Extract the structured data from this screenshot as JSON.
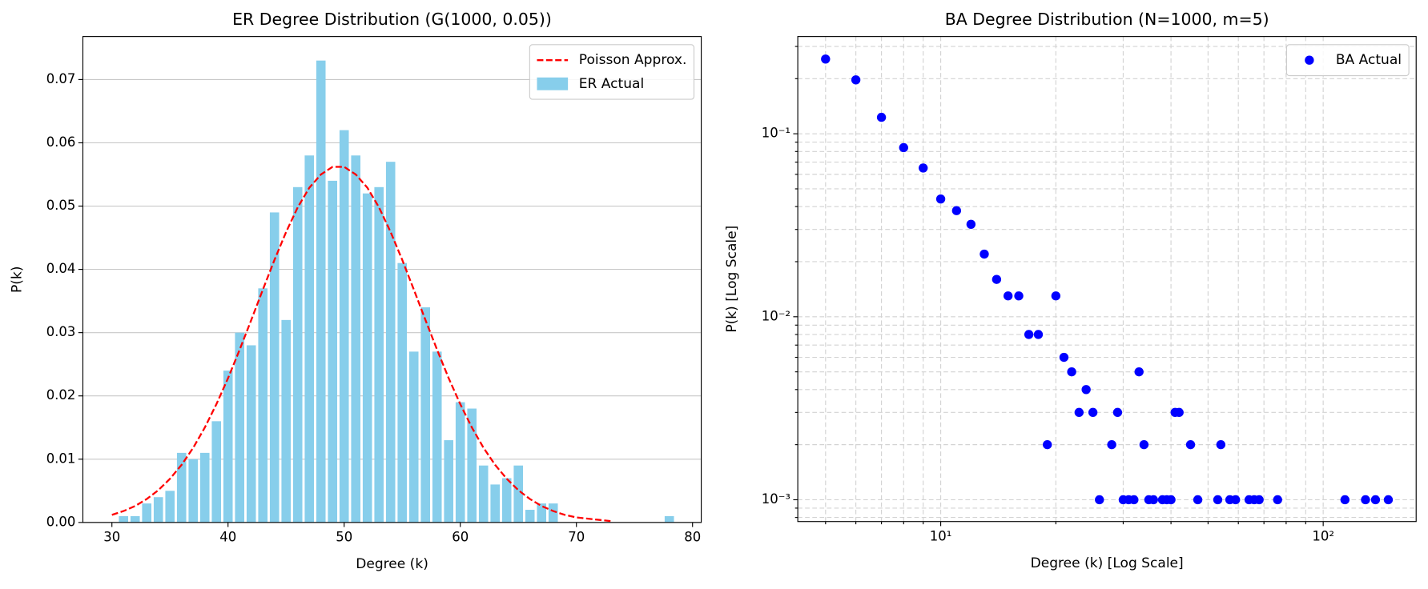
{
  "chart_data": [
    {
      "type": "bar",
      "title": "ER Degree Distribution (G(1000, 0.05))",
      "xlabel": "Degree (k)",
      "ylabel": "P(k)",
      "series": [
        {
          "name": "Poisson Approx.",
          "type": "line",
          "style": "dashed",
          "color": "#ff0000",
          "x": [
            30,
            31,
            32,
            33,
            34,
            35,
            36,
            37,
            38,
            39,
            40,
            41,
            42,
            43,
            44,
            45,
            46,
            47,
            48,
            49,
            50,
            51,
            52,
            53,
            54,
            55,
            56,
            57,
            58,
            59,
            60,
            61,
            62,
            63,
            64,
            65,
            66,
            67,
            68,
            69,
            70,
            71,
            72,
            73
          ],
          "values": [
            0.0012,
            0.0018,
            0.0026,
            0.0037,
            0.0051,
            0.0069,
            0.0091,
            0.0118,
            0.015,
            0.0187,
            0.0228,
            0.0273,
            0.032,
            0.0368,
            0.0415,
            0.0459,
            0.0498,
            0.0529,
            0.055,
            0.0562,
            0.0562,
            0.055,
            0.0529,
            0.0498,
            0.0459,
            0.0415,
            0.0368,
            0.032,
            0.0273,
            0.0228,
            0.0187,
            0.015,
            0.0118,
            0.0091,
            0.0069,
            0.0051,
            0.0037,
            0.0026,
            0.0018,
            0.0012,
            0.0008,
            0.0006,
            0.0004,
            0.0002
          ]
        },
        {
          "name": "ER Actual",
          "type": "bar",
          "color": "#87ceeb",
          "x": [
            31,
            32,
            33,
            34,
            35,
            36,
            37,
            38,
            39,
            40,
            41,
            42,
            43,
            44,
            45,
            46,
            47,
            48,
            49,
            50,
            51,
            52,
            53,
            54,
            55,
            56,
            57,
            58,
            59,
            60,
            61,
            62,
            63,
            64,
            65,
            66,
            67,
            68,
            78
          ],
          "values": [
            0.001,
            0.001,
            0.003,
            0.004,
            0.005,
            0.011,
            0.01,
            0.011,
            0.016,
            0.024,
            0.03,
            0.028,
            0.037,
            0.049,
            0.032,
            0.053,
            0.058,
            0.073,
            0.054,
            0.062,
            0.058,
            0.052,
            0.053,
            0.057,
            0.041,
            0.027,
            0.034,
            0.027,
            0.013,
            0.019,
            0.018,
            0.009,
            0.006,
            0.007,
            0.009,
            0.002,
            0.003,
            0.003,
            0.001
          ]
        }
      ],
      "xlim": [
        27.5,
        80.75
      ],
      "xticks": [
        30,
        40,
        50,
        60,
        70,
        80
      ],
      "ylim": [
        0,
        0.0768
      ],
      "yticks": [
        {
          "value": 0,
          "label": "0.00"
        },
        0.01,
        0.02,
        0.03,
        0.04,
        0.05,
        0.06,
        0.07
      ],
      "grid": "y",
      "legend": "upper right"
    },
    {
      "type": "scatter",
      "title": "BA Degree Distribution (N=1000, m=5)",
      "xlabel": "Degree (k) [Log Scale]",
      "ylabel": "P(k) [Log Scale]",
      "xscale": "log",
      "yscale": "log",
      "series": [
        {
          "name": "BA Actual",
          "type": "scatter",
          "color": "#0000ff",
          "x": [
            5,
            6,
            7,
            8,
            9,
            10,
            11,
            12,
            13,
            14,
            15,
            16,
            17,
            18,
            19,
            20,
            21,
            22,
            23,
            24,
            25,
            26,
            28,
            29,
            30,
            31,
            32,
            33,
            34,
            35,
            36,
            38,
            39,
            40,
            41,
            42,
            45,
            47,
            53,
            54,
            57,
            59,
            64,
            66,
            68,
            76,
            114,
            129,
            137,
            148
          ],
          "values": [
            0.256,
            0.197,
            0.123,
            0.084,
            0.065,
            0.044,
            0.038,
            0.032,
            0.022,
            0.016,
            0.013,
            0.013,
            0.008,
            0.008,
            0.002,
            0.013,
            0.006,
            0.005,
            0.003,
            0.004,
            0.003,
            0.001,
            0.002,
            0.003,
            0.001,
            0.001,
            0.001,
            0.005,
            0.002,
            0.001,
            0.001,
            0.001,
            0.001,
            0.001,
            0.003,
            0.003,
            0.002,
            0.001,
            0.001,
            0.002,
            0.001,
            0.001,
            0.001,
            0.001,
            0.001,
            0.001,
            0.001,
            0.001,
            0.001,
            0.001
          ]
        }
      ],
      "xlim": [
        4.23,
        175
      ],
      "xticks": [
        {
          "value": 10,
          "label": "10¹"
        },
        {
          "value": 100,
          "label": "10²"
        }
      ],
      "xminorticks": [
        5,
        6,
        7,
        8,
        9,
        20,
        30,
        40,
        50,
        60,
        70,
        80,
        90
      ],
      "ylim": [
        0.00076,
        0.34
      ],
      "yticks": [
        {
          "value": 0.001,
          "label": "10⁻³"
        },
        {
          "value": 0.01,
          "label": "10⁻²"
        },
        {
          "value": 0.1,
          "label": "10⁻¹"
        }
      ],
      "yminorticks": [
        0.0008,
        0.0009,
        0.002,
        0.003,
        0.004,
        0.005,
        0.006,
        0.007,
        0.008,
        0.009,
        0.02,
        0.03,
        0.04,
        0.05,
        0.06,
        0.07,
        0.08,
        0.09,
        0.2,
        0.3
      ],
      "grid": "both",
      "legend": "upper right"
    }
  ]
}
